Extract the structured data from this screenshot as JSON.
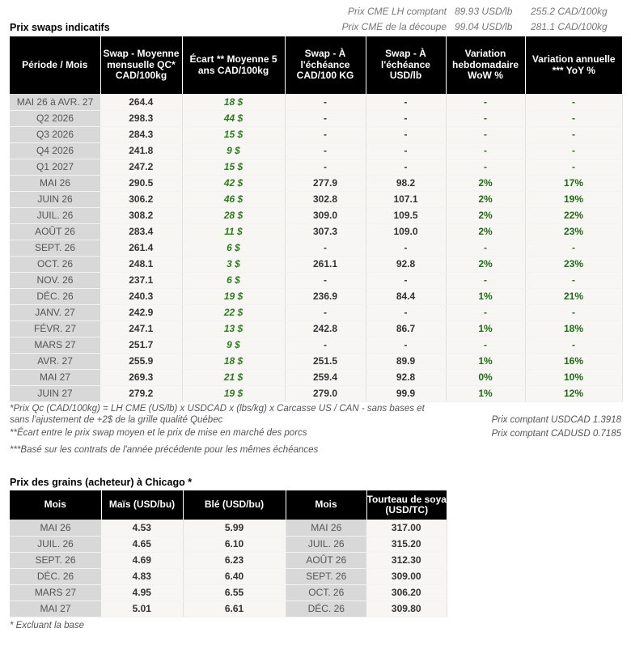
{
  "top_info": [
    {
      "label": "Prix CME LH comptant",
      "usd": "89.93 USD/lb",
      "cad": "255.2 CAD/100kg"
    },
    {
      "label": "Prix CME de la découpe",
      "usd": "99.04 USD/lb",
      "cad": "281.1 CAD/100kg"
    }
  ],
  "swaps": {
    "title": "Prix swaps indicatifs",
    "headers": [
      "Période / Mois",
      "Swap - Moyenne mensuelle QC* CAD/100kg",
      "Écart ** Moyenne 5 ans CAD/100kg",
      "Swap - À l'échéance CAD/100 KG",
      "Swap - À l'échéance USD/lb",
      "Variation hebdomadaire WoW %",
      "Variation annuelle *** YoY %"
    ],
    "rows": [
      [
        "MAI 26 à  AVR. 27",
        "264.4",
        "18 $",
        "-",
        "-",
        "-",
        "-"
      ],
      [
        "Q2 2026",
        "298.3",
        "44 $",
        "-",
        "-",
        "-",
        "-"
      ],
      [
        "Q3 2026",
        "284.3",
        "15 $",
        "-",
        "-",
        "-",
        "-"
      ],
      [
        "Q4 2026",
        "241.8",
        "9 $",
        "-",
        "-",
        "-",
        "-"
      ],
      [
        "Q1 2027",
        "247.2",
        "15 $",
        "-",
        "-",
        "-",
        "-"
      ],
      [
        "MAI 26",
        "290.5",
        "42 $",
        "277.9",
        "98.2",
        "2%",
        "17%"
      ],
      [
        "JUIN 26",
        "306.2",
        "46 $",
        "302.8",
        "107.1",
        "2%",
        "19%"
      ],
      [
        "JUIL. 26",
        "308.2",
        "28 $",
        "309.0",
        "109.5",
        "2%",
        "22%"
      ],
      [
        "AOÛT 26",
        "283.4",
        "11 $",
        "307.3",
        "109.0",
        "2%",
        "23%"
      ],
      [
        "SEPT. 26",
        "261.4",
        "6 $",
        "-",
        "-",
        "-",
        "-"
      ],
      [
        "OCT. 26",
        "248.1",
        "3 $",
        "261.1",
        "92.8",
        "2%",
        "23%"
      ],
      [
        "NOV. 26",
        "237.1",
        "6 $",
        "-",
        "-",
        "-",
        "-"
      ],
      [
        "DÉC. 26",
        "240.3",
        "19 $",
        "236.9",
        "84.4",
        "1%",
        "21%"
      ],
      [
        "JANV. 27",
        "242.9",
        "22 $",
        "-",
        "-",
        "-",
        "-"
      ],
      [
        "FÉVR. 27",
        "247.1",
        "13 $",
        "242.8",
        "86.7",
        "1%",
        "18%"
      ],
      [
        "MARS 27",
        "251.7",
        "9 $",
        "-",
        "-",
        "-",
        "-"
      ],
      [
        "AVR. 27",
        "255.9",
        "18 $",
        "251.5",
        "89.9",
        "1%",
        "16%"
      ],
      [
        "MAI 27",
        "269.3",
        "21 $",
        "259.4",
        "92.8",
        "0%",
        "10%"
      ],
      [
        "JUIN 27",
        "279.2",
        "19 $",
        "279.0",
        "99.9",
        "1%",
        "12%"
      ]
    ]
  },
  "notes": {
    "note1_line1": "*Prix Qc (CAD/100kg) = LH CME (US/lb) x USDCAD x (lbs/kg) x Carcasse US / CAN - sans bases et",
    "note1_line2": "sans l'ajustement de +2$ de la grille qualité Québec",
    "note2": "**Écart entre le prix swap moyen et le prix de mise en marché des porcs",
    "note3": "***Basé sur les contrats de l'année précédente pour les mêmes échéances",
    "usdcad": "Prix comptant USDCAD 1.3918",
    "cadusd": "Prix comptant CADUSD 0.7185"
  },
  "grains": {
    "title": "Prix des grains (acheteur) à Chicago *",
    "headers": [
      "Mois",
      "Maïs (USD/bu)",
      "Blé (USD/bu)",
      "Mois",
      "Tourteau de soya (USD/TC)"
    ],
    "rows": [
      [
        "MAI 26",
        "4.53",
        "5.99",
        "MAI 26",
        "317.00"
      ],
      [
        "JUIL. 26",
        "4.65",
        "6.10",
        "JUIL. 26",
        "315.20"
      ],
      [
        "SEPT. 26",
        "4.69",
        "6.23",
        "AOÛT 26",
        "312.30"
      ],
      [
        "DÉC. 26",
        "4.83",
        "6.40",
        "SEPT. 26",
        "309.00"
      ],
      [
        "MARS 27",
        "4.95",
        "6.55",
        "OCT. 26",
        "306.20"
      ],
      [
        "MAI 27",
        "5.01",
        "6.61",
        "DÉC. 26",
        "309.80"
      ]
    ],
    "footnote": "* Excluant la base"
  }
}
